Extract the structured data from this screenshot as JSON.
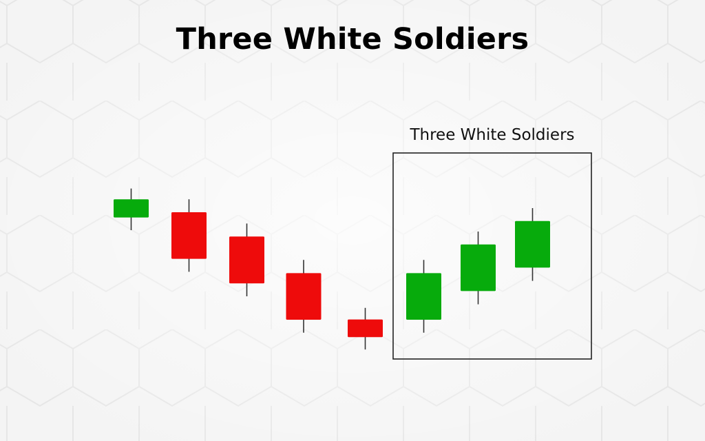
{
  "title": "Three White Soldiers",
  "pattern_box": {
    "label": "Three White Soldiers",
    "first_candle": 6,
    "last_candle": 8
  },
  "colors": {
    "bullish": "#07ab0c",
    "bearish": "#ee0b0b",
    "wick": "#333333",
    "box": "#222222",
    "background": "#f4f4f4",
    "hex_line": "#e6e6e6"
  },
  "chart_data": {
    "type": "candlestick",
    "title": "Three White Soldiers",
    "xlabel": "",
    "ylabel": "",
    "axes_visible": false,
    "grid": false,
    "ylim": [
      0,
      100
    ],
    "candles": [
      {
        "open": 58.6,
        "close": 65.2,
        "high": 69.1,
        "low": 54.0,
        "direction": "up"
      },
      {
        "open": 60.5,
        "close": 43.6,
        "high": 65.2,
        "low": 38.9,
        "direction": "down"
      },
      {
        "open": 51.7,
        "close": 34.7,
        "high": 56.4,
        "low": 30.0,
        "direction": "down"
      },
      {
        "open": 38.4,
        "close": 21.5,
        "high": 43.2,
        "low": 16.8,
        "direction": "down"
      },
      {
        "open": 21.6,
        "close": 15.2,
        "high": 25.8,
        "low": 10.7,
        "direction": "down"
      },
      {
        "open": 21.5,
        "close": 38.4,
        "high": 43.2,
        "low": 16.8,
        "direction": "up"
      },
      {
        "open": 31.9,
        "close": 48.8,
        "high": 53.5,
        "low": 27.1,
        "direction": "up"
      },
      {
        "open": 40.4,
        "close": 57.3,
        "high": 62.0,
        "low": 35.6,
        "direction": "up"
      }
    ]
  }
}
